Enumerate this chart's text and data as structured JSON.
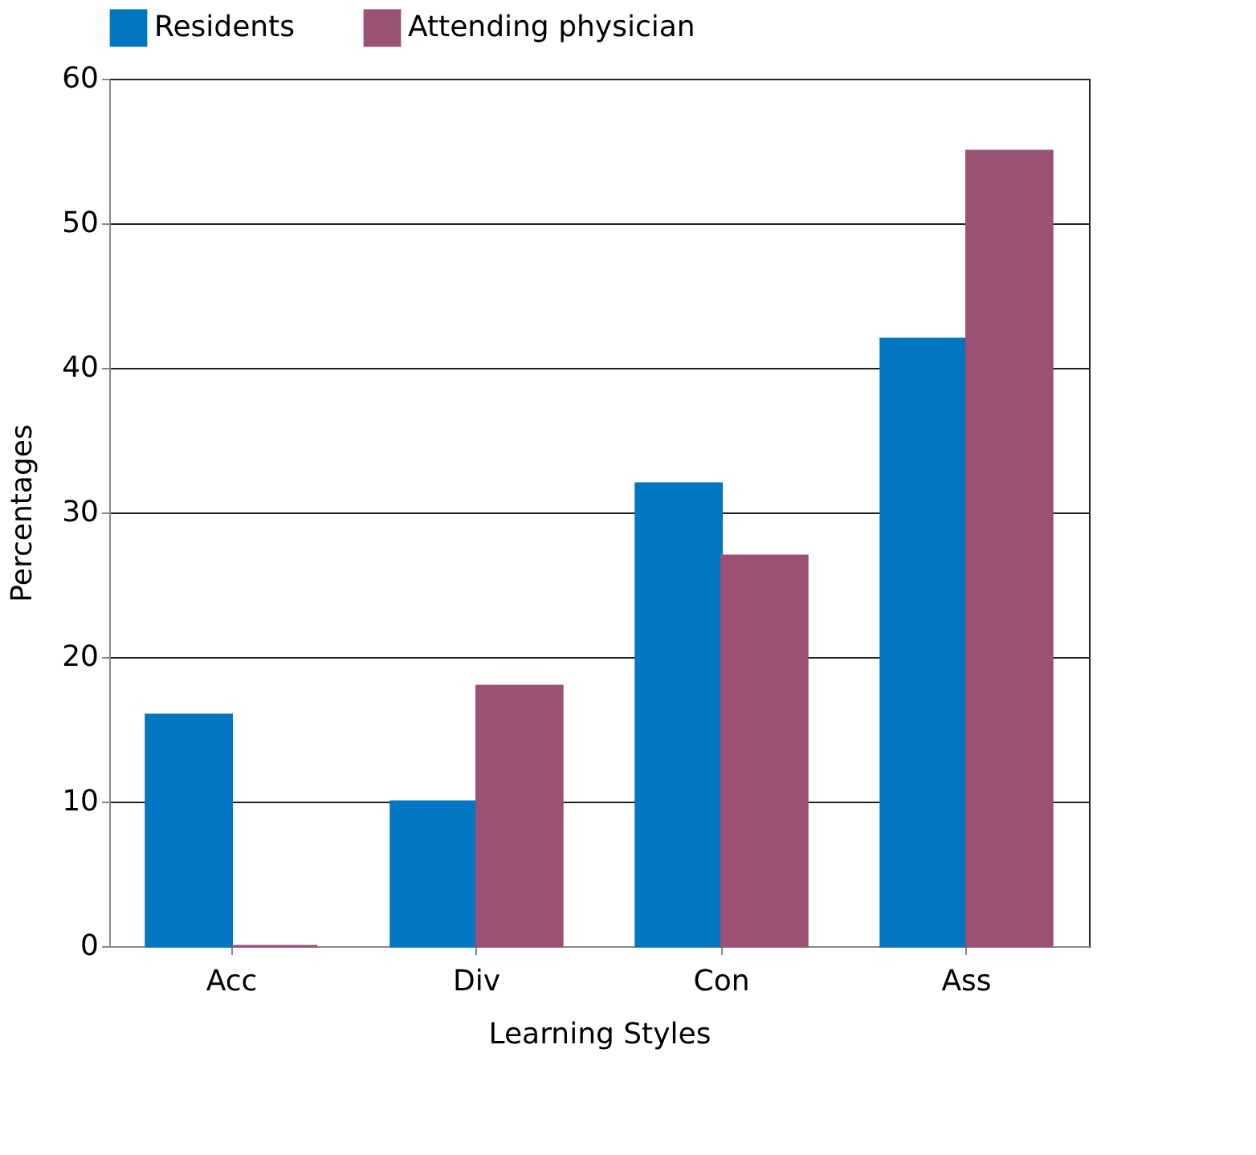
{
  "chart_data": {
    "type": "bar",
    "xlabel": "Learning Styles",
    "ylabel": "Percentages",
    "categories": [
      "Acc",
      "Div",
      "Con",
      "Ass"
    ],
    "series": [
      {
        "name": "Residents",
        "color": "#0077c0",
        "values": [
          16,
          10,
          32,
          42
        ]
      },
      {
        "name": "Attending physician",
        "color": "#9b5174",
        "values": [
          0,
          18,
          27,
          55
        ]
      }
    ],
    "ylim": [
      0,
      60
    ],
    "yticks": [
      0,
      10,
      20,
      30,
      40,
      50,
      60
    ],
    "grid": "y",
    "legend": "top"
  }
}
